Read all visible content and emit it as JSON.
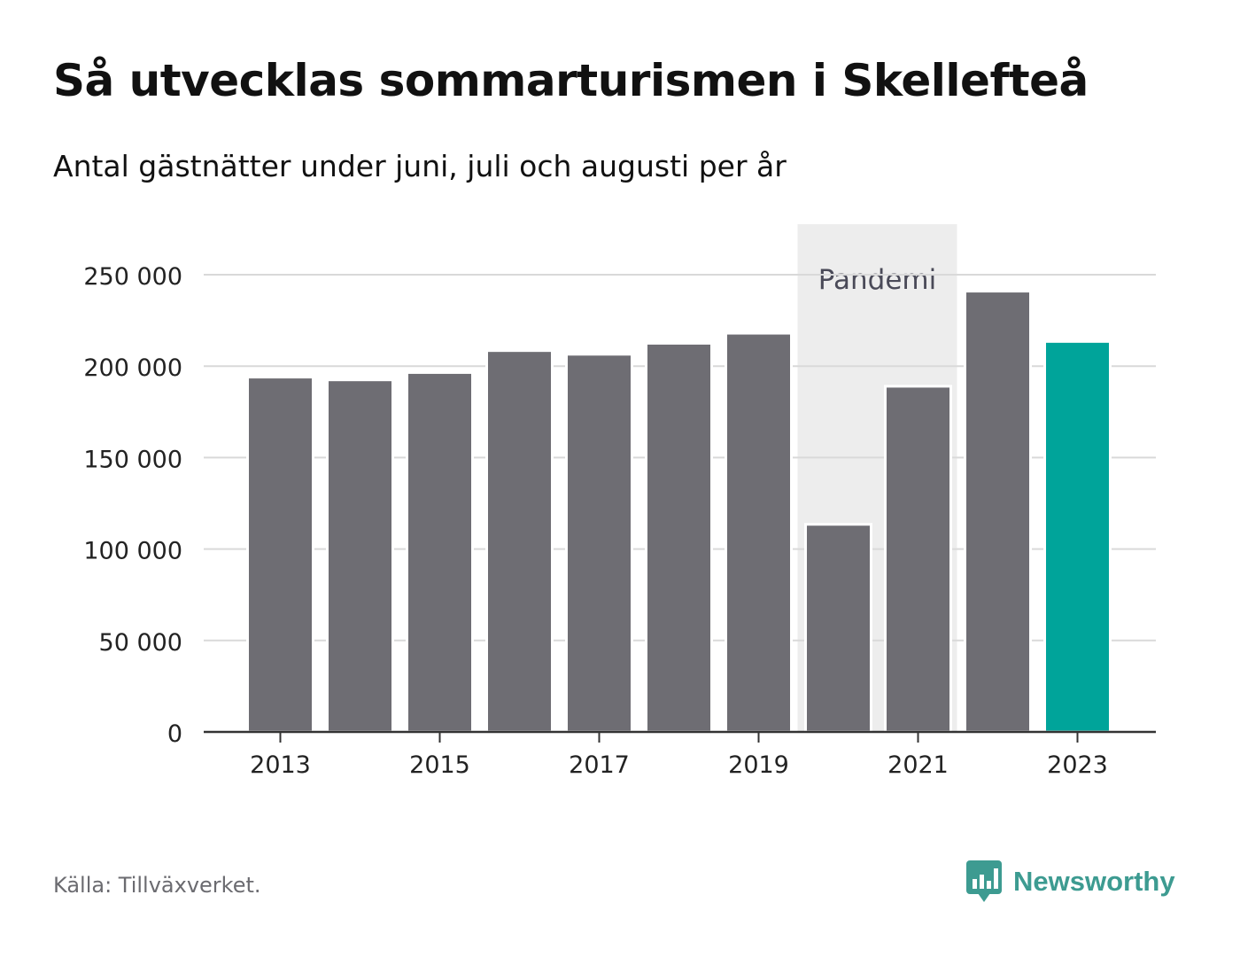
{
  "header": {
    "title": "Så utvecklas sommarturismen i Skellefteå",
    "subtitle": "Antal gästnätter under juni, juli och augusti per år"
  },
  "footer": {
    "source": "Källa: Tillväxverket.",
    "brand": "Newsworthy",
    "brand_icon": "bar-chart-speech-bubble-icon"
  },
  "colors": {
    "bar": "#6e6d73",
    "highlight": "#00a49a",
    "band": "#ededed",
    "grid": "#d9d9d9",
    "axis": "#333333",
    "brand": "#3d9b91"
  },
  "chart_data": {
    "type": "bar",
    "title": "Så utvecklas sommarturismen i Skellefteå",
    "subtitle": "Antal gästnätter under juni, juli och augusti per år",
    "xlabel": "",
    "ylabel": "",
    "x": [
      2013,
      2014,
      2015,
      2016,
      2017,
      2018,
      2019,
      2020,
      2021,
      2022,
      2023
    ],
    "values": [
      194000,
      192500,
      196500,
      208500,
      206500,
      212500,
      218000,
      113500,
      189000,
      241000,
      213500
    ],
    "highlight": [
      2023
    ],
    "xticks": [
      2013,
      2015,
      2017,
      2019,
      2021,
      2023
    ],
    "xtick_labels": [
      "2013",
      "2015",
      "2017",
      "2019",
      "2021",
      "2023"
    ],
    "ylim": [
      0,
      250000
    ],
    "yticks": [
      0,
      50000,
      100000,
      150000,
      200000,
      250000
    ],
    "ytick_labels": [
      "0",
      "50 000",
      "100 000",
      "150 000",
      "200 000",
      "250 000"
    ],
    "grid": true,
    "annotations": [
      {
        "label": "Pandemi",
        "x_start": 2020,
        "x_end": 2021
      }
    ]
  }
}
